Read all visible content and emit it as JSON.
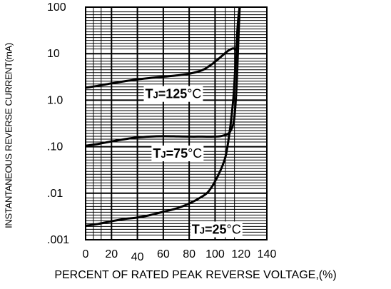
{
  "chart_data": {
    "type": "line",
    "ylabel": "INSTANTANEOUS REVERSE CURRENT(mA)",
    "xlabel": "PERCENT OF RATED PEAK REVERSE VOLTAGE,(%)",
    "xlim": [
      0,
      140
    ],
    "ylim": [
      0.001,
      100
    ],
    "yscale": "log",
    "grid": true,
    "x_ticks": [
      "0",
      "20",
      "40",
      "60",
      "80",
      "100",
      "120",
      "140"
    ],
    "y_ticks": [
      "100",
      "10",
      "1.0",
      ".10",
      ".01",
      ".001"
    ],
    "series": [
      {
        "name": "TJ=125°C",
        "label_sub": "J",
        "label_value": "=125",
        "label_unit": "°C",
        "x": [
          0,
          10,
          20,
          30,
          40,
          50,
          60,
          70,
          80,
          90,
          95,
          100,
          105,
          110,
          114,
          116,
          117,
          118,
          119
        ],
        "y": [
          1.85,
          2.05,
          2.3,
          2.55,
          2.8,
          3.0,
          3.2,
          3.4,
          3.7,
          4.4,
          5.3,
          6.7,
          8.8,
          11.5,
          13,
          12.5,
          20,
          50,
          100
        ]
      },
      {
        "name": "TJ=75°C",
        "label_sub": "J",
        "label_value": "=75",
        "label_unit": "°C",
        "x": [
          0,
          10,
          20,
          30,
          40,
          50,
          60,
          70,
          80,
          90,
          100,
          105,
          110,
          112,
          114,
          115,
          116,
          117,
          118,
          119
        ],
        "y": [
          0.105,
          0.115,
          0.13,
          0.145,
          0.158,
          0.165,
          0.168,
          0.167,
          0.165,
          0.165,
          0.165,
          0.17,
          0.19,
          0.22,
          0.3,
          0.45,
          1.0,
          3.5,
          20,
          100
        ]
      },
      {
        "name": "TJ=25°C",
        "label_sub": "J",
        "label_value": "=25",
        "label_unit": "°C",
        "x": [
          0,
          10,
          20,
          30,
          40,
          50,
          60,
          70,
          80,
          90,
          95,
          100,
          105,
          108,
          110,
          112,
          114,
          115,
          116,
          117,
          118,
          119
        ],
        "y": [
          0.002,
          0.0022,
          0.0025,
          0.0028,
          0.003,
          0.0034,
          0.004,
          0.0047,
          0.006,
          0.0085,
          0.011,
          0.018,
          0.035,
          0.06,
          0.12,
          0.3,
          1.0,
          2.5,
          8,
          25,
          60,
          100
        ]
      }
    ]
  }
}
